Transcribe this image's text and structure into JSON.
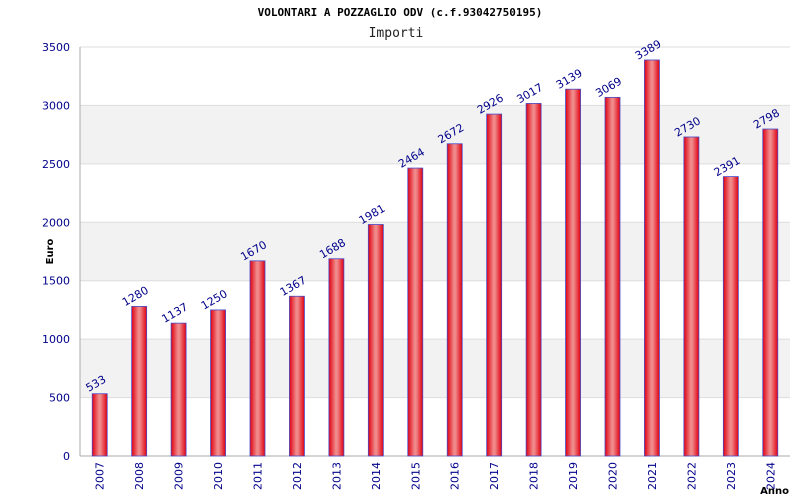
{
  "chart_data": {
    "type": "bar",
    "title": "VOLONTARI A POZZAGLIO ODV (c.f.93042750195)",
    "subtitle": "Importi",
    "xlabel": "Anno",
    "ylabel": "Euro",
    "ylim": [
      0,
      3500
    ],
    "yticks": [
      0,
      500,
      1000,
      1500,
      2000,
      2500,
      3000,
      3500
    ],
    "categories": [
      "2007",
      "2008",
      "2009",
      "2010",
      "2011",
      "2012",
      "2013",
      "2014",
      "2015",
      "2016",
      "2017",
      "2018",
      "2019",
      "2020",
      "2021",
      "2022",
      "2023",
      "2024"
    ],
    "values": [
      533,
      1280,
      1137,
      1250,
      1670,
      1367,
      1688,
      1981,
      2464,
      2672,
      2926,
      3017,
      3139,
      3069,
      3389,
      2730,
      2391,
      2798
    ],
    "grid": true,
    "legend": "none",
    "colors": {
      "bar_center": "#f08a8a",
      "bar_edge": "#e00010",
      "bar_outline": "#4a4ac8",
      "band": "#f2f2f2",
      "gridline": "#dddddd",
      "axis": "#aaaaaa",
      "text": "#00008b"
    }
  }
}
